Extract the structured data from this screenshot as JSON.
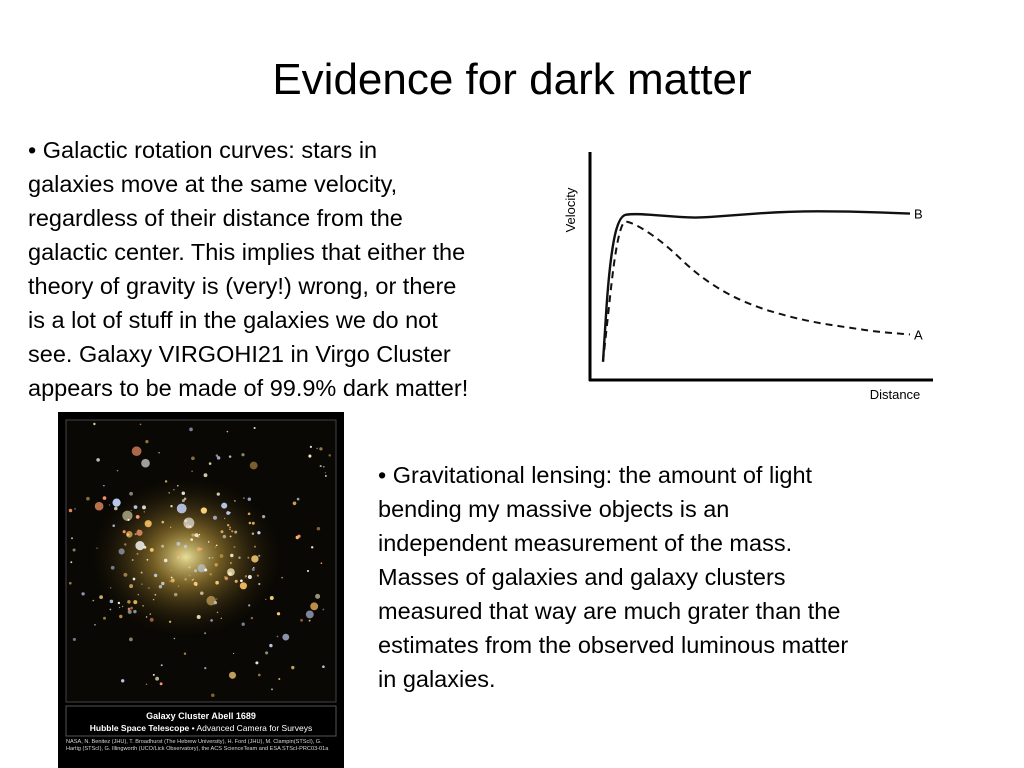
{
  "slide": {
    "title": "Evidence for dark matter",
    "bullet1": "• Galactic rotation curves: stars in\ngalaxies move at the same velocity,\nregardless of their distance from the\ngalactic center. This implies that either the\ntheory of gravity is (very!) wrong, or there\nis a lot of stuff in the galaxies we do not\nsee. Galaxy VIRGOHI21 in Virgo Cluster\nappears to be made of 99.9% dark matter!",
    "bullet2": "• Gravitational lensing: the amount of light\nbending my massive objects is an\nindependent measurement of the mass.\nMasses of galaxies and galaxy clusters\nmeasured that way are much grater than the\nestimates from the observed luminous matter\nin galaxies."
  },
  "photo": {
    "caption_title": "Galaxy Cluster Abell 1689",
    "caption_telescope": "Hubble Space Telescope",
    "caption_instrument": " • Advanced Camera for Surveys",
    "credit": "NASA, N. Benitez (JHU), T. Broadhurst (The Hebrew University), H. Ford (JHU), M. Clampin(STScI), G. Hartig (STScI), G. Illingworth (UCO/Lick Observatory), the ACS ScienceTeam and ESA STScI-PRC03-01a"
  },
  "chart_data": {
    "type": "line",
    "ylabel": "Velocity",
    "xlabel": "Distance",
    "series": [
      {
        "name": "B",
        "style": "solid",
        "x": [
          0.0,
          0.02,
          0.05,
          0.1,
          0.2,
          0.3,
          0.4,
          0.6,
          0.8,
          1.0
        ],
        "y": [
          0.08,
          0.5,
          0.72,
          0.73,
          0.72,
          0.71,
          0.72,
          0.74,
          0.74,
          0.73
        ]
      },
      {
        "name": "A",
        "style": "dashed",
        "x": [
          0.0,
          0.05,
          0.1,
          0.2,
          0.3,
          0.4,
          0.5,
          0.6,
          0.7,
          0.8,
          0.9,
          1.0
        ],
        "y": [
          0.08,
          0.7,
          0.69,
          0.6,
          0.47,
          0.38,
          0.32,
          0.28,
          0.25,
          0.23,
          0.21,
          0.2
        ]
      }
    ]
  }
}
